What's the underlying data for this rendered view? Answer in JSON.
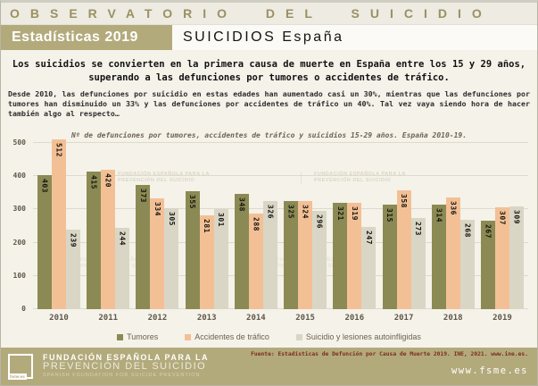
{
  "header": {
    "observatorio": "OBSERVATORIO DEL SUICIDIO",
    "badge": "Estadísticas 2019",
    "title": "SUICIDIOS España"
  },
  "intro": {
    "headline": "Los suicidios se convierten en la primera causa de muerte en España entre los 15 y 29 años, superando a las defunciones por tumores o accidentes de tráfico.",
    "body": "Desde 2010, las defunciones por suicidio en estas edades han aumentado casi un 30%, mientras que las defunciones por tumores han disminuido un 33% y las defunciones por accidentes de tráfico un 40%. Tal vez vaya siendo hora de hacer también algo al respecto…"
  },
  "chart_data": {
    "type": "bar",
    "title": "Nº de defunciones por tumores, accidentes de tráfico y suicidios 15-29 años. España 2010-19.",
    "categories": [
      "2010",
      "2011",
      "2012",
      "2013",
      "2014",
      "2015",
      "2016",
      "2017",
      "2018",
      "2019"
    ],
    "series": [
      {
        "name": "Tumores",
        "color": "#8b8a54",
        "values": [
          403,
          415,
          373,
          355,
          348,
          325,
          321,
          315,
          314,
          267
        ]
      },
      {
        "name": "Accidentes de tráfico",
        "color": "#f3c096",
        "values": [
          512,
          420,
          334,
          281,
          288,
          324,
          319,
          358,
          336,
          307
        ]
      },
      {
        "name": "Suicidio y lesiones autoinfligidas",
        "color": "#d9d6c6",
        "values": [
          239,
          244,
          305,
          301,
          326,
          296,
          247,
          273,
          268,
          309
        ]
      }
    ],
    "ylim": [
      0,
      500
    ],
    "yticks": [
      0,
      100,
      200,
      300,
      400,
      500
    ],
    "grid": true,
    "legend_position": "bottom",
    "watermark_line1": "FUNDACIÓN ESPAÑOLA PARA LA",
    "watermark_line2": "PREVENCIÓN DEL SUICIDIO"
  },
  "footer": {
    "logo_label": "fsme.es",
    "brand_line1": "FUNDACIÓN ESPAÑOLA PARA LA",
    "brand_line2": "PREVENCIÓN DEL SUICIDIO",
    "brand_line3": "SPANISH FOUNDATION FOR SUICIDE PREVENTION",
    "source": "Fuente: Estadísticas de Defunción por Causa de Muerte 2019. INE, 2021. www.ine.es.",
    "website": "www.fsme.es"
  }
}
